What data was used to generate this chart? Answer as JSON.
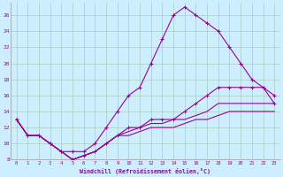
{
  "xlabel": "Windchill (Refroidissement éolien,°C)",
  "bg_color": "#cceeff",
  "grid_color": "#aaccbb",
  "line_color": "#990099",
  "xlim": [
    -0.5,
    23.5
  ],
  "ylim": [
    8,
    27.5
  ],
  "yticks": [
    8,
    10,
    12,
    14,
    16,
    18,
    20,
    22,
    24,
    26
  ],
  "xticks": [
    0,
    1,
    2,
    3,
    4,
    5,
    6,
    7,
    8,
    9,
    10,
    11,
    12,
    13,
    14,
    15,
    16,
    17,
    18,
    19,
    20,
    21,
    22,
    23
  ],
  "hours": [
    0,
    1,
    2,
    3,
    4,
    5,
    6,
    7,
    8,
    9,
    10,
    11,
    12,
    13,
    14,
    15,
    16,
    17,
    18,
    19,
    20,
    21,
    22,
    23
  ],
  "line1_y": [
    13,
    11,
    11,
    10,
    9,
    9,
    9,
    10,
    12,
    14,
    16,
    17,
    20,
    23,
    26,
    27,
    26,
    25,
    24,
    22,
    20,
    18,
    17,
    16
  ],
  "line2_y": [
    13,
    11,
    11,
    10,
    9,
    8,
    8.5,
    9,
    10,
    11,
    12,
    12,
    13,
    13,
    13,
    14,
    15,
    16,
    17,
    17,
    17,
    17,
    17,
    15
  ],
  "line3_y": [
    13,
    11,
    11,
    10,
    9,
    8,
    8.5,
    9,
    10,
    11,
    11.5,
    12,
    12.5,
    12.5,
    13,
    13,
    13.5,
    14,
    15,
    15,
    15,
    15,
    15,
    15
  ],
  "line4_y": [
    13,
    11,
    11,
    10,
    9,
    8,
    8.5,
    9,
    10,
    11,
    11,
    11.5,
    12,
    12,
    12,
    12.5,
    13,
    13,
    13.5,
    14,
    14,
    14,
    14,
    14
  ]
}
